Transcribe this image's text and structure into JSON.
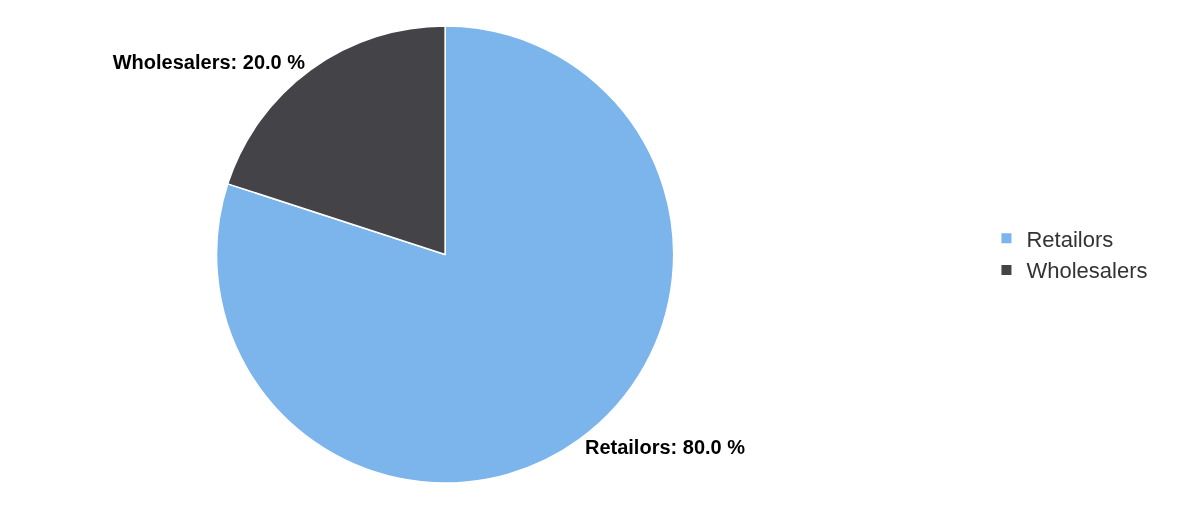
{
  "chart_data": {
    "type": "pie",
    "categories": [
      "Retailors",
      "Wholesalers"
    ],
    "values": [
      80,
      20
    ],
    "colors": [
      "#7cb5ec",
      "#434348"
    ],
    "value_labels": [
      "Retailors: 80.0 %",
      "Wholesalers: 20.0 %"
    ],
    "legend": "right"
  }
}
